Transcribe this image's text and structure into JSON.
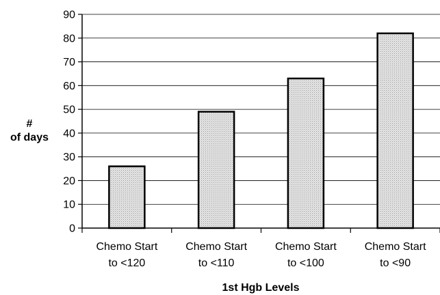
{
  "chart_data": {
    "type": "bar",
    "categories": [
      [
        "Chemo Start",
        "to <120"
      ],
      [
        "Chemo Start",
        "to <110"
      ],
      [
        "Chemo Start",
        "to <100"
      ],
      [
        "Chemo Start",
        "to <90"
      ]
    ],
    "values": [
      26,
      49,
      63,
      82
    ],
    "xlabel": "1st Hgb Levels",
    "ylabel": [
      "#",
      "of days"
    ],
    "ylim": [
      0,
      90
    ],
    "yticks": [
      0,
      10,
      20,
      30,
      40,
      50,
      60,
      70,
      80,
      90
    ],
    "grid": true,
    "legend": "none",
    "colors": {
      "bar_fill": "#d9d9d9",
      "bar_stroke": "#000000",
      "grid": "#000000"
    }
  }
}
